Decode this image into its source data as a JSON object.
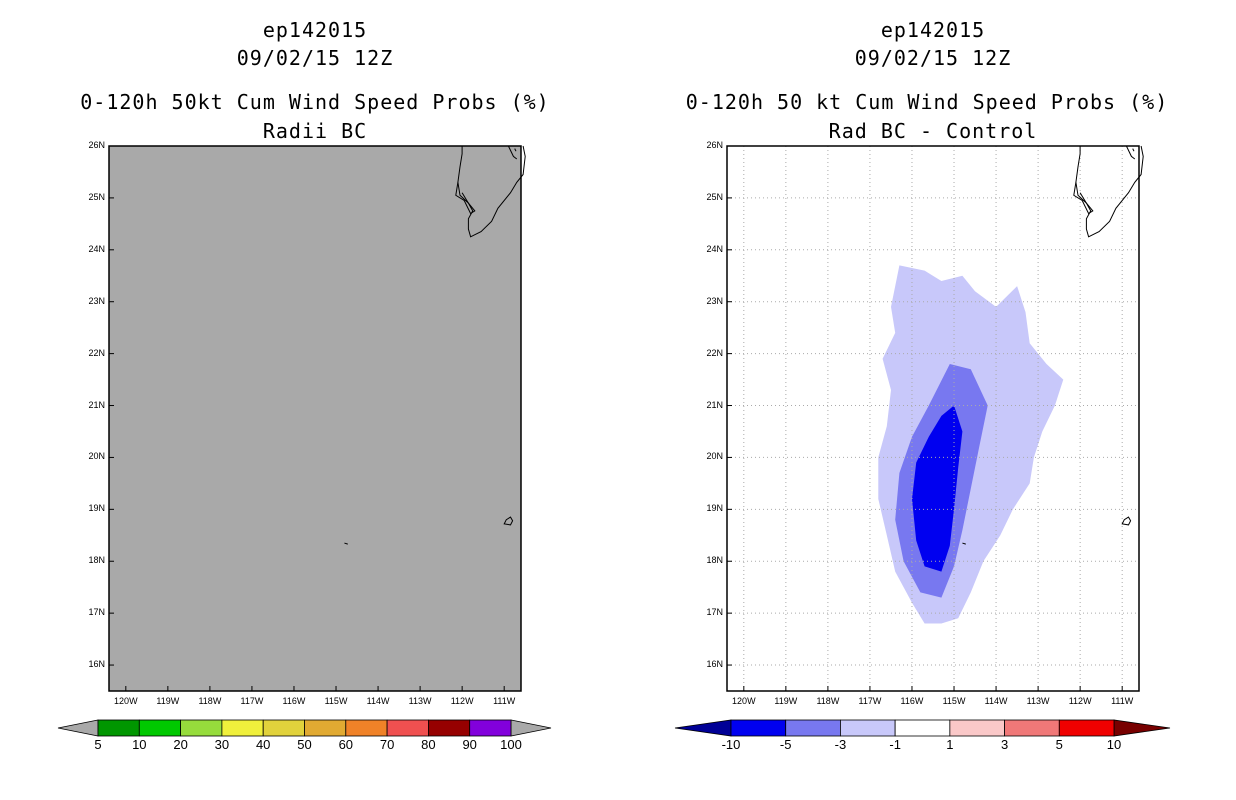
{
  "chart_data": [
    {
      "type": "map-contour",
      "storm_id": "ep142015",
      "date": "09/02/15 12Z",
      "title": "0-120h 50kt Cum Wind Speed Probs (%)",
      "subtitle": "Radii BC",
      "lon_range": [
        -120.4,
        -110.6
      ],
      "lat_range": [
        15.5,
        26
      ],
      "x_ticks": [
        "120W",
        "119W",
        "118W",
        "117W",
        "116W",
        "115W",
        "114W",
        "113W",
        "112W",
        "111W"
      ],
      "y_ticks": [
        "16N",
        "17N",
        "18N",
        "19N",
        "20N",
        "21N",
        "22N",
        "23N",
        "24N",
        "25N",
        "26N"
      ],
      "grid": false,
      "background_fill": "#a9a9a9",
      "colorbar": {
        "labels": [
          "5",
          "10",
          "20",
          "30",
          "40",
          "50",
          "60",
          "70",
          "80",
          "90",
          "100"
        ],
        "colors": [
          "#009600",
          "#00c800",
          "#96dc3c",
          "#f0f03c",
          "#e1d23c",
          "#e1aa32",
          "#f08228",
          "#f05050",
          "#960000",
          "#8200dc"
        ],
        "under_color": "#a9a9a9",
        "over_color": "#a9a9a9"
      }
    },
    {
      "type": "map-contour",
      "storm_id": "ep142015",
      "date": "09/02/15 12Z",
      "title": "0-120h 50 kt Cum Wind Speed Probs (%)",
      "subtitle": "Rad BC - Control",
      "lon_range": [
        -120.4,
        -110.6
      ],
      "lat_range": [
        15.5,
        26
      ],
      "x_ticks": [
        "120W",
        "119W",
        "118W",
        "117W",
        "116W",
        "115W",
        "114W",
        "113W",
        "112W",
        "111W"
      ],
      "y_ticks": [
        "16N",
        "17N",
        "18N",
        "19N",
        "20N",
        "21N",
        "22N",
        "23N",
        "24N",
        "25N",
        "26N"
      ],
      "grid": true,
      "contours": [
        {
          "level": "-3 to -1",
          "color": "#c8c8fa",
          "polygon": [
            [
              -116.3,
              23.7
            ],
            [
              -115.7,
              23.6
            ],
            [
              -115.3,
              23.4
            ],
            [
              -114.8,
              23.5
            ],
            [
              -114.5,
              23.2
            ],
            [
              -114.0,
              22.9
            ],
            [
              -113.5,
              23.3
            ],
            [
              -113.3,
              22.8
            ],
            [
              -113.2,
              22.2
            ],
            [
              -112.8,
              21.8
            ],
            [
              -112.4,
              21.5
            ],
            [
              -112.6,
              21.0
            ],
            [
              -112.9,
              20.5
            ],
            [
              -113.1,
              20.0
            ],
            [
              -113.2,
              19.5
            ],
            [
              -113.6,
              19.0
            ],
            [
              -113.9,
              18.5
            ],
            [
              -114.3,
              18.0
            ],
            [
              -114.6,
              17.4
            ],
            [
              -114.9,
              16.9
            ],
            [
              -115.3,
              16.8
            ],
            [
              -115.7,
              16.8
            ],
            [
              -116.0,
              17.2
            ],
            [
              -116.4,
              17.8
            ],
            [
              -116.6,
              18.5
            ],
            [
              -116.8,
              19.2
            ],
            [
              -116.8,
              20.0
            ],
            [
              -116.6,
              20.6
            ],
            [
              -116.5,
              21.3
            ],
            [
              -116.7,
              21.9
            ],
            [
              -116.4,
              22.4
            ],
            [
              -116.5,
              22.9
            ]
          ]
        },
        {
          "level": "-5 to -3",
          "color": "#7878f0",
          "polygon": [
            [
              -115.1,
              21.8
            ],
            [
              -114.6,
              21.7
            ],
            [
              -114.2,
              21.0
            ],
            [
              -114.4,
              20.2
            ],
            [
              -114.6,
              19.4
            ],
            [
              -114.8,
              18.6
            ],
            [
              -115.0,
              17.9
            ],
            [
              -115.3,
              17.3
            ],
            [
              -115.8,
              17.4
            ],
            [
              -116.2,
              18.0
            ],
            [
              -116.4,
              18.8
            ],
            [
              -116.3,
              19.7
            ],
            [
              -116.0,
              20.4
            ],
            [
              -115.6,
              21.0
            ]
          ]
        },
        {
          "level": "-10 to -5",
          "color": "#0000f0",
          "polygon": [
            [
              -115.0,
              21.0
            ],
            [
              -114.8,
              20.5
            ],
            [
              -114.9,
              19.8
            ],
            [
              -115.0,
              19.0
            ],
            [
              -115.1,
              18.3
            ],
            [
              -115.3,
              17.8
            ],
            [
              -115.7,
              17.9
            ],
            [
              -115.9,
              18.4
            ],
            [
              -116.0,
              19.2
            ],
            [
              -115.9,
              19.9
            ],
            [
              -115.6,
              20.4
            ],
            [
              -115.3,
              20.8
            ]
          ]
        }
      ],
      "colorbar": {
        "labels": [
          "-10",
          "-5",
          "-3",
          "-1",
          "1",
          "3",
          "5",
          "10"
        ],
        "colors": [
          "#0000f0",
          "#7878f0",
          "#c8c8fa",
          "#ffffff",
          "#fac8c8",
          "#f07878",
          "#f00000"
        ],
        "under_color": "#000096",
        "over_color": "#780000"
      }
    }
  ]
}
